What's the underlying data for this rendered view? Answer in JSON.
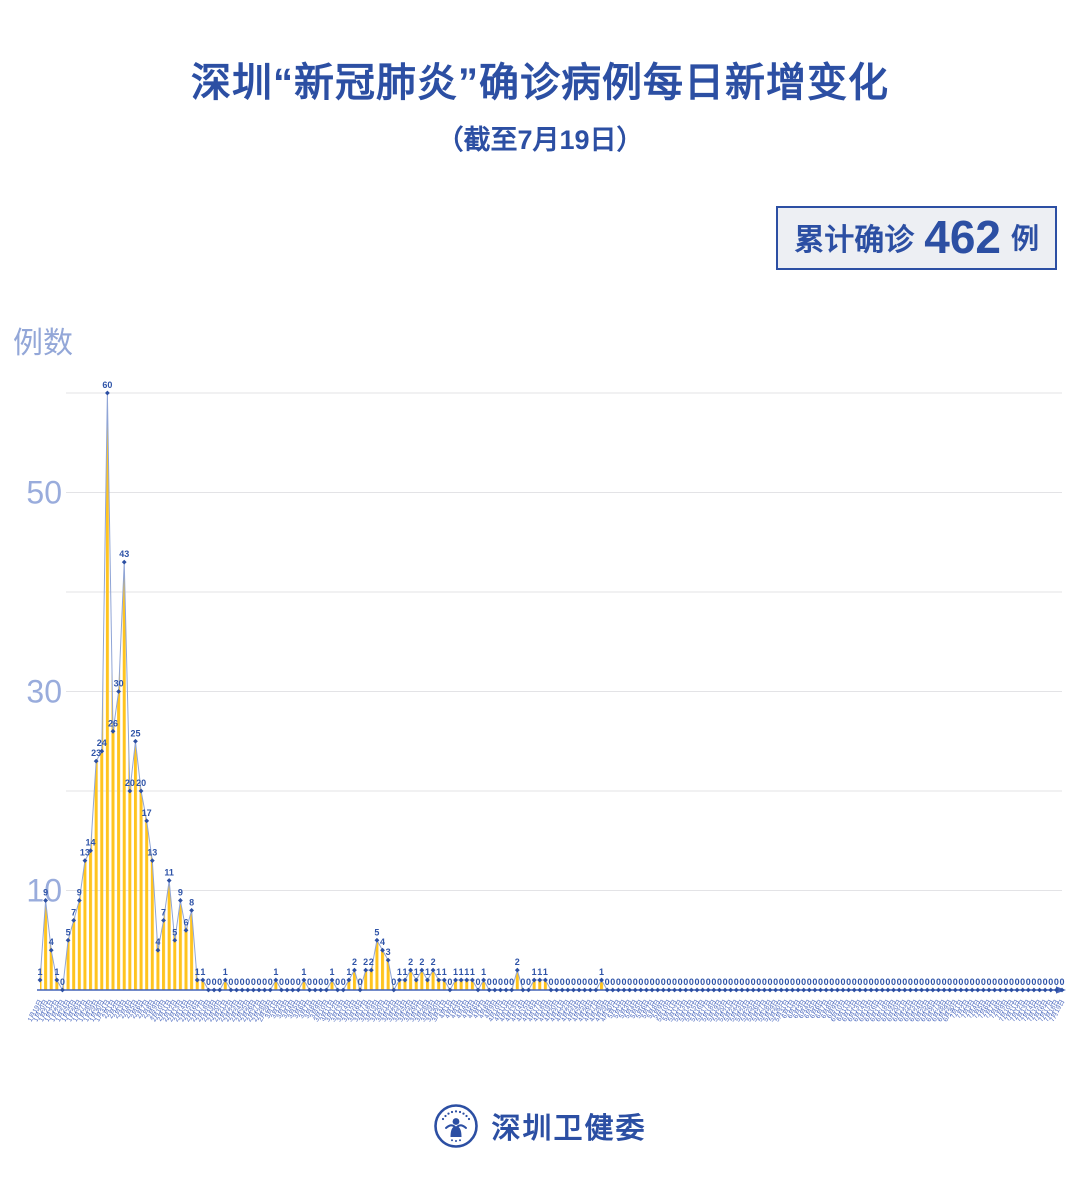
{
  "header": {
    "title": "深圳“新冠肺炎”确诊病例每日新增变化",
    "subtitle": "（截至7月19日）"
  },
  "badge": {
    "prefix": "累计确诊",
    "count": "462",
    "suffix": "例"
  },
  "footer": {
    "org": "深圳卫健委",
    "logo_icon": "shenzhen-health-commission-emblem"
  },
  "chart_data": {
    "type": "area",
    "title": "深圳“新冠肺炎”确诊病例每日新增变化",
    "subtitle": "（截至7月19日）",
    "ylabel": "例数",
    "xlabel": "",
    "ylim": [
      0,
      62
    ],
    "yticks_labeled": [
      10,
      30,
      50
    ],
    "gridlines": [
      10,
      20,
      30,
      40,
      50,
      60
    ],
    "grid": true,
    "legend": "none",
    "cumulative_total": 462,
    "x_start_date": "1月19日",
    "x_end_date": "7月19日",
    "categories": [
      "1月19日",
      "1月20日",
      "1月21日",
      "1月22日",
      "1月23日",
      "1月24日",
      "1月25日",
      "1月26日",
      "1月27日",
      "1月28日",
      "1月29日",
      "1月30日",
      "1月31日",
      "2月1日",
      "2月2日",
      "2月3日",
      "2月4日",
      "2月5日",
      "2月6日",
      "2月7日",
      "2月8日",
      "2月9日",
      "2月10日",
      "2月11日",
      "2月12日",
      "2月13日",
      "2月14日",
      "2月15日",
      "2月16日",
      "2月17日",
      "2月18日",
      "2月19日",
      "2月20日",
      "2月21日",
      "2月22日",
      "2月23日",
      "2月24日",
      "2月25日",
      "2月26日",
      "2月27日",
      "2月28日",
      "2月29日",
      "3月1日",
      "3月2日",
      "3月3日",
      "3月4日",
      "3月5日",
      "3月6日",
      "3月7日",
      "3月8日",
      "3月9日",
      "3月10日",
      "3月11日",
      "3月12日",
      "3月13日",
      "3月14日",
      "3月15日",
      "3月16日",
      "3月17日",
      "3月18日",
      "3月19日",
      "3月20日",
      "3月21日",
      "3月22日",
      "3月23日",
      "3月24日",
      "3月25日",
      "3月26日",
      "3月27日",
      "3月28日",
      "3月29日",
      "3月30日",
      "3月31日",
      "4月1日",
      "4月2日",
      "4月3日",
      "4月4日",
      "4月5日",
      "4月6日",
      "4月7日",
      "4月8日",
      "4月9日",
      "4月10日",
      "4月11日",
      "4月12日",
      "4月13日",
      "4月14日",
      "4月15日",
      "4月16日",
      "4月17日",
      "4月18日",
      "4月19日",
      "4月20日",
      "4月21日",
      "4月22日",
      "4月23日",
      "4月24日",
      "4月25日",
      "4月26日",
      "4月27日",
      "4月28日",
      "4月29日",
      "4月30日",
      "5月1日",
      "5月2日",
      "5月3日",
      "5月4日",
      "5月5日",
      "5月6日",
      "5月7日",
      "5月8日",
      "5月9日",
      "5月10日",
      "5月11日",
      "5月12日",
      "5月13日",
      "5月14日",
      "5月15日",
      "5月16日",
      "5月17日",
      "5月18日",
      "5月19日",
      "5月20日",
      "5月21日",
      "5月22日",
      "5月23日",
      "5月24日",
      "5月25日",
      "5月26日",
      "5月27日",
      "5月28日",
      "5月29日",
      "5月30日",
      "5月31日",
      "6月1日",
      "6月2日",
      "6月3日",
      "6月4日",
      "6月5日",
      "6月6日",
      "6月7日",
      "6月8日",
      "6月9日",
      "6月10日",
      "6月11日",
      "6月12日",
      "6月13日",
      "6月14日",
      "6月15日",
      "6月16日",
      "6月17日",
      "6月18日",
      "6月19日",
      "6月20日",
      "6月21日",
      "6月22日",
      "6月23日",
      "6月24日",
      "6月25日",
      "6月26日",
      "6月27日",
      "6月28日",
      "6月29日",
      "6月30日",
      "7月1日",
      "7月2日",
      "7月3日",
      "7月4日",
      "7月5日",
      "7月6日",
      "7月7日",
      "7月8日",
      "7月9日",
      "7月10日",
      "7月11日",
      "7月12日",
      "7月13日",
      "7月14日",
      "7月15日",
      "7月16日",
      "7月17日",
      "7月18日",
      "7月19日"
    ],
    "values": [
      1,
      9,
      4,
      1,
      0,
      5,
      7,
      9,
      13,
      14,
      23,
      24,
      60,
      26,
      30,
      43,
      20,
      25,
      20,
      17,
      13,
      4,
      7,
      11,
      5,
      9,
      6,
      8,
      1,
      1,
      0,
      0,
      0,
      1,
      0,
      0,
      0,
      0,
      0,
      0,
      0,
      0,
      1,
      0,
      0,
      0,
      0,
      1,
      0,
      0,
      0,
      0,
      1,
      0,
      0,
      1,
      2,
      0,
      2,
      2,
      5,
      4,
      3,
      0,
      1,
      1,
      2,
      1,
      2,
      1,
      2,
      1,
      1,
      0,
      1,
      1,
      1,
      1,
      0,
      1,
      0,
      0,
      0,
      0,
      0,
      2,
      0,
      0,
      1,
      1,
      1,
      0,
      0,
      0,
      0,
      0,
      0,
      0,
      0,
      0,
      1,
      0,
      0,
      0,
      0,
      0,
      0,
      0,
      0,
      0,
      0,
      0,
      0,
      0,
      0,
      0,
      0,
      0,
      0,
      0,
      0,
      0,
      0,
      0,
      0,
      0,
      0,
      0,
      0,
      0,
      0,
      0,
      0,
      0,
      0,
      0,
      0,
      0,
      0,
      0,
      0,
      0,
      0,
      0,
      0,
      0,
      0,
      0,
      0,
      0,
      0,
      0,
      0,
      0,
      0,
      0,
      0,
      0,
      0,
      0,
      0,
      0,
      0,
      0,
      0,
      0,
      0,
      0,
      0,
      0,
      0,
      0,
      0,
      0,
      0,
      0,
      0,
      0,
      0,
      0,
      0,
      0,
      0
    ],
    "colors": {
      "accent_blue": "#2C4FA3",
      "area_yellow": "#FFC41F",
      "series_line": "#90A5D6",
      "marker": "#2C4FA3",
      "value_label": "#2F54A8",
      "axis": "#4463B8",
      "x_tick_label": "#4A68BE",
      "y_tick_label": "#99ACDC",
      "gridline": "#E3E3E6",
      "badge_bg": "#EDEFF3"
    }
  }
}
